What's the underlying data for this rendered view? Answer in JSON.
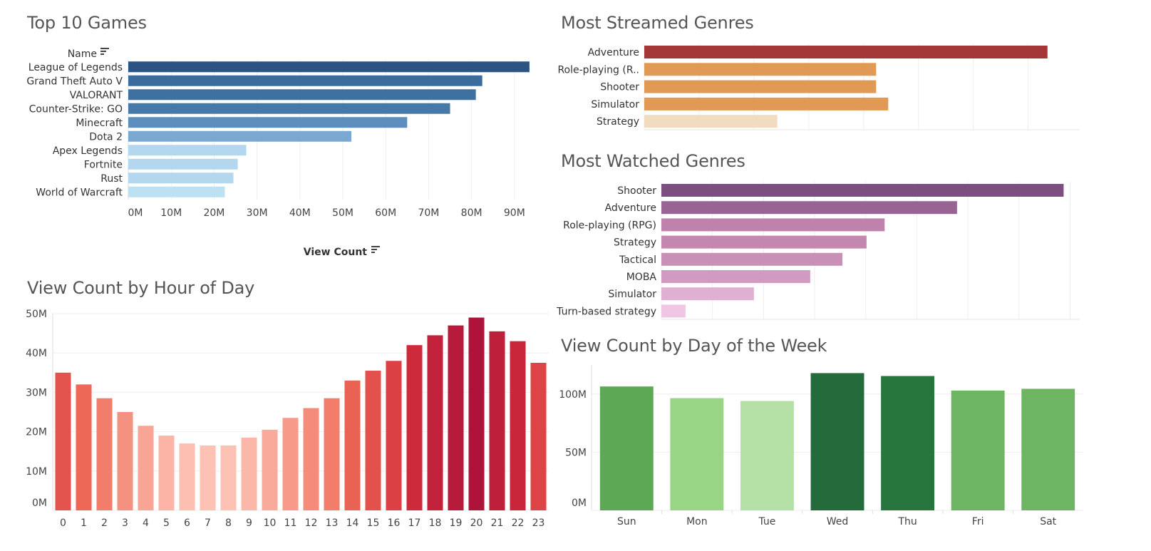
{
  "colors": {
    "top_games": [
      "#2b5482",
      "#3a6c9d",
      "#3e70a0",
      "#4679a8",
      "#5c8ebd",
      "#7aa8d0",
      "#b3d7ef",
      "#b3d7ef",
      "#b3d7ef",
      "#bde0f3"
    ],
    "streamed": [
      "#a33636",
      "#e09a56",
      "#e09a56",
      "#e09a56",
      "#f2dcc0"
    ],
    "watched": [
      "#7c4f80",
      "#986494",
      "#bf82ad",
      "#c488b0",
      "#c990b7",
      "#d19ac2",
      "#e0b0d2",
      "#efc6e4"
    ],
    "hour_palette_note": "red sequential",
    "day": [
      "#5da854",
      "#98d686",
      "#b4e0a6",
      "#246b3c",
      "#27763e",
      "#6db563",
      "#6db563"
    ]
  },
  "chart_data": [
    {
      "id": "top_games",
      "type": "bar",
      "orientation": "horizontal",
      "title": "Top 10 Games",
      "ylabel": "Name",
      "xlabel": "View Count",
      "categories": [
        "League of Legends",
        "Grand Theft Auto V",
        "VALORANT",
        "Counter-Strike: GO",
        "Minecraft",
        "Dota 2",
        "Apex Legends",
        "Fortnite",
        "Rust",
        "World of Warcraft"
      ],
      "values": [
        93.5,
        82.5,
        81,
        75,
        65,
        52,
        27.5,
        25.5,
        24.5,
        22.5
      ],
      "xlim": [
        0,
        98
      ],
      "ticks": [
        0,
        10,
        20,
        30,
        40,
        50,
        60,
        70,
        80,
        90
      ],
      "tick_labels": [
        "0M",
        "10M",
        "20M",
        "30M",
        "40M",
        "50M",
        "60M",
        "70M",
        "80M",
        "90M"
      ],
      "grid": true
    },
    {
      "id": "streamed",
      "type": "bar",
      "orientation": "horizontal",
      "title": "Most Streamed Genres",
      "categories": [
        "Adventure",
        "Role-playing (R..",
        "Shooter",
        "Simulator",
        "Strategy"
      ],
      "values": [
        100,
        57.5,
        57.5,
        60.5,
        33
      ],
      "xlim": [
        0,
        108
      ],
      "grid_ticks": [
        0,
        13.6,
        27.2,
        40.8,
        54.4,
        68,
        81.6,
        95.2
      ],
      "grid": true
    },
    {
      "id": "watched",
      "type": "bar",
      "orientation": "horizontal",
      "title": "Most Watched Genres",
      "categories": [
        "Shooter",
        "Adventure",
        "Role-playing (RPG)",
        "Strategy",
        "Tactical",
        "MOBA",
        "Simulator",
        "Turn-based strategy"
      ],
      "values": [
        100,
        73.5,
        55.5,
        51,
        45,
        37,
        23,
        6
      ],
      "xlim": [
        0,
        104
      ],
      "grid_ticks": [
        0,
        12.7,
        25.4,
        38.1,
        50.8,
        63.5,
        76.2,
        88.9,
        101.6
      ],
      "grid": true
    },
    {
      "id": "hour",
      "type": "bar",
      "title": "View Count by Hour of Day",
      "categories": [
        "0",
        "1",
        "2",
        "3",
        "4",
        "5",
        "6",
        "7",
        "8",
        "9",
        "10",
        "11",
        "12",
        "13",
        "14",
        "15",
        "16",
        "17",
        "18",
        "19",
        "20",
        "21",
        "22",
        "23"
      ],
      "values": [
        35,
        32,
        28.5,
        25,
        21.5,
        19,
        17,
        16.5,
        16.5,
        18.5,
        20.5,
        23.5,
        26,
        28.5,
        33,
        35.5,
        38,
        42,
        44.5,
        47,
        49,
        45.5,
        43,
        37.5
      ],
      "ylim": [
        0,
        50
      ],
      "ticks": [
        0,
        10,
        20,
        30,
        40,
        50
      ],
      "tick_labels": [
        "0M",
        "10M",
        "20M",
        "30M",
        "40M",
        "50M"
      ],
      "grid": true
    },
    {
      "id": "day",
      "type": "bar",
      "title": "View Count by Day of the Week",
      "categories": [
        "Sun",
        "Mon",
        "Tue",
        "Wed",
        "Thu",
        "Fri",
        "Sat"
      ],
      "values": [
        106.5,
        96.5,
        94,
        118,
        115.5,
        103,
        104.5
      ],
      "ylim": [
        0,
        125
      ],
      "ticks": [
        0,
        50,
        100
      ],
      "tick_labels": [
        "0M",
        "50M",
        "100M"
      ],
      "grid": true
    }
  ]
}
